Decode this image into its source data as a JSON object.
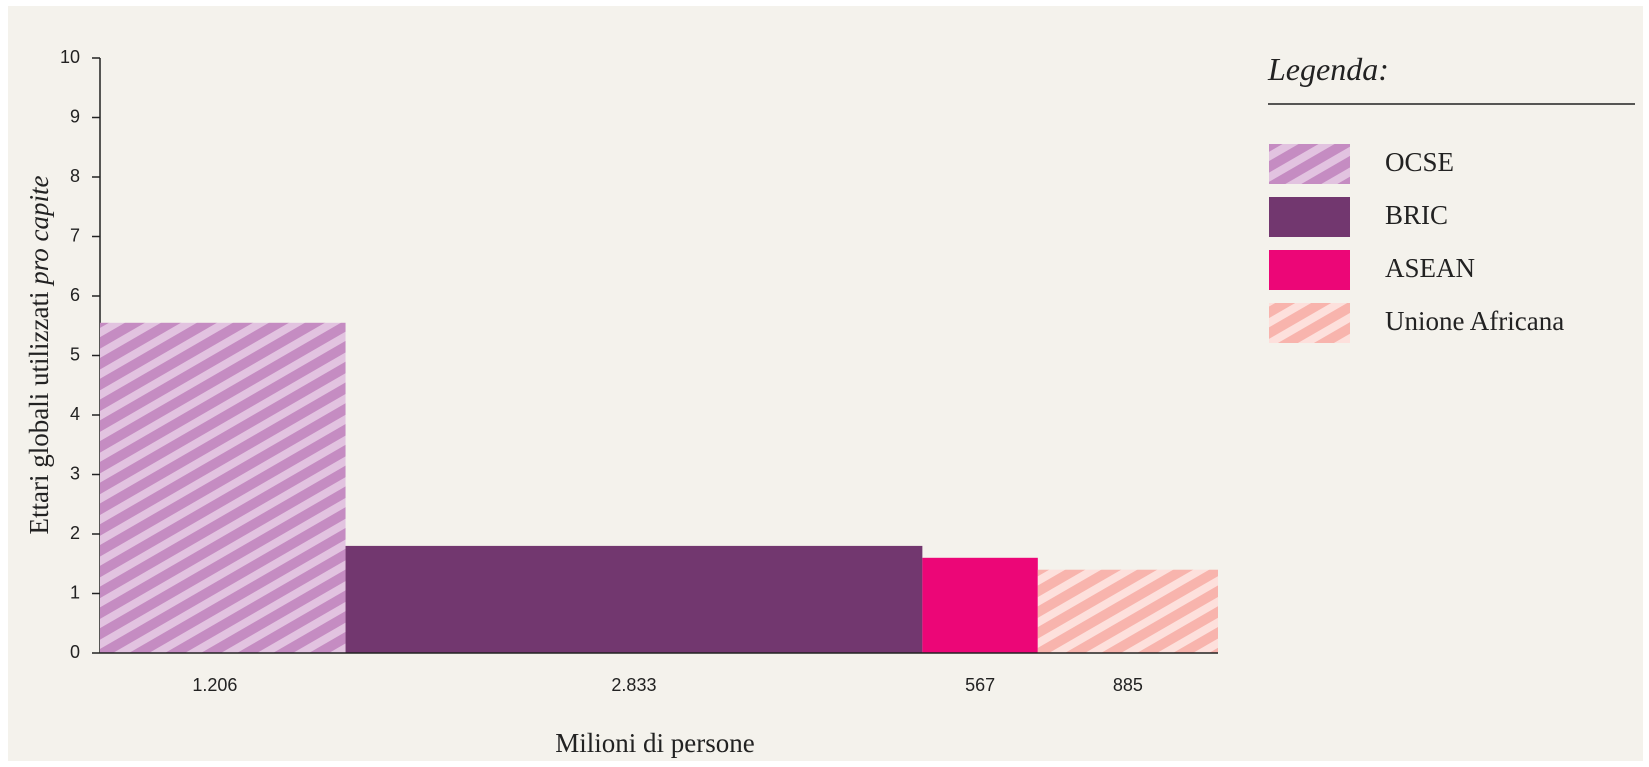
{
  "chart_data": {
    "type": "variable-width-bar",
    "ylabel": "Ettari globali utilizzati",
    "ylabel_italic": "pro capite",
    "xlabel": "Milioni di persone",
    "legend_title": "Legenda:",
    "values": [
      5.55,
      1.8,
      1.6,
      1.4
    ],
    "widths": [
      1206,
      2833,
      567,
      885
    ],
    "width_labels": [
      "1.206",
      "2.833",
      "567",
      "885"
    ],
    "series": [
      {
        "name": "OCSE",
        "color": "#c58cc2",
        "hatch_color": "#e2c3e0",
        "pattern": "hatch"
      },
      {
        "name": "BRIC",
        "color": "#72376f",
        "pattern": "solid"
      },
      {
        "name": "ASEAN",
        "color": "#ec0677",
        "pattern": "solid"
      },
      {
        "name": "Unione Africana",
        "color": "#f8b4ad",
        "hatch_color": "#fde0dc",
        "pattern": "hatch"
      }
    ],
    "ylim": [
      0,
      10
    ],
    "yticks": [
      0,
      1,
      2,
      3,
      4,
      5,
      6,
      7,
      8,
      9,
      10
    ]
  }
}
